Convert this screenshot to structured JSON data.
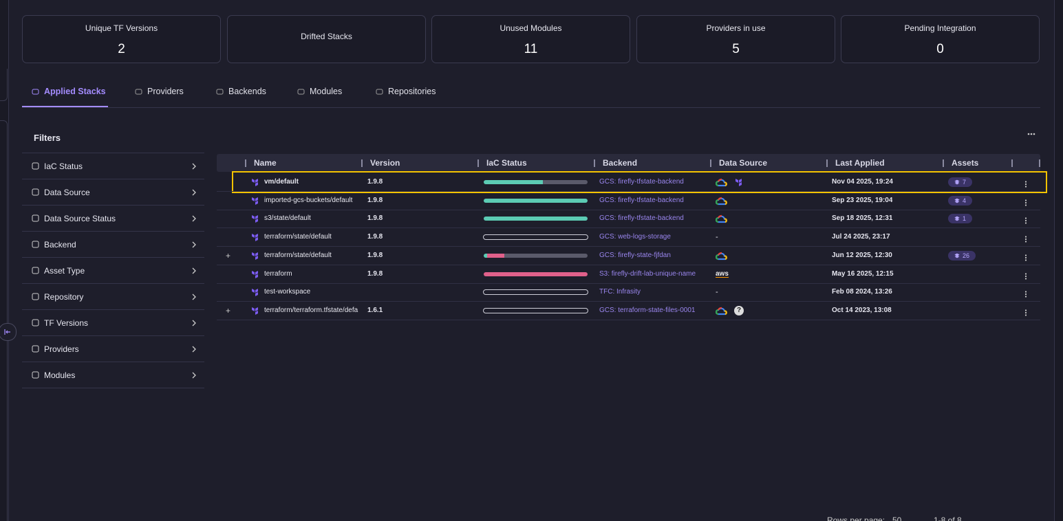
{
  "stats": [
    {
      "label": "Unique TF Versions",
      "value": "2"
    },
    {
      "label": "Drifted Stacks"
    },
    {
      "label": "Unused Modules",
      "value": "11"
    },
    {
      "label": "Providers in use",
      "value": "5"
    },
    {
      "label": "Pending Integration",
      "value": "0"
    }
  ],
  "tabs": {
    "items": [
      "Applied Stacks",
      "Providers",
      "Backends",
      "Modules",
      "Repositories"
    ],
    "active": 0
  },
  "filters": {
    "title": "Filters",
    "items": [
      "IaC Status",
      "Data Source",
      "Data Source Status",
      "Backend",
      "Asset Type",
      "Repository",
      "TF Versions",
      "Providers",
      "Modules"
    ]
  },
  "table": {
    "columns": [
      "Name",
      "Version",
      "IaC Status",
      "Backend",
      "Data Source",
      "Last Applied",
      "Assets"
    ],
    "highlighted_row": 0,
    "rows": [
      {
        "name": "vm/default",
        "version": "1.9.8",
        "iac": {
          "codified": 57,
          "drifted": 0,
          "unmanaged": 43
        },
        "backend": "GCS: firefly-tfstate-backend",
        "sources": [
          "gcp",
          "terraform"
        ],
        "last_applied": "Nov 04 2025, 19:24",
        "assets": "7"
      },
      {
        "name": "imported-gcs-buckets/default",
        "version": "1.9.8",
        "iac": {
          "codified": 100,
          "drifted": 0,
          "unmanaged": 0
        },
        "backend": "GCS: firefly-tfstate-backend",
        "sources": [
          "gcp"
        ],
        "last_applied": "Sep 23 2025, 19:04",
        "assets": "4"
      },
      {
        "name": "s3/state/default",
        "version": "1.9.8",
        "iac": {
          "codified": 100,
          "drifted": 0,
          "unmanaged": 0
        },
        "backend": "GCS: firefly-tfstate-backend",
        "sources": [
          "gcp"
        ],
        "last_applied": "Sep 18 2025, 12:31",
        "assets": "1"
      },
      {
        "name": "terraform/state/default",
        "version": "1.9.8",
        "iac": {
          "codified": 0,
          "drifted": 0,
          "unmanaged": 0
        },
        "backend": "GCS: web-logs-storage",
        "sources": [],
        "no_source": "-",
        "last_applied": "Jul 24 2025, 23:17"
      },
      {
        "expand": "+",
        "name": "terraform/state/default",
        "version": "1.9.8",
        "iac": {
          "codified": 3,
          "drifted": 17,
          "unmanaged": 80
        },
        "backend": "GCS: firefly-state-fjfdan",
        "sources": [
          "gcp"
        ],
        "last_applied": "Jun 12 2025, 12:30",
        "assets": "26"
      },
      {
        "name": "terraform",
        "version": "1.9.8",
        "iac": {
          "codified": 0,
          "drifted": 100,
          "unmanaged": 0
        },
        "backend": "S3: firefly-drift-lab-unique-name",
        "sources": [
          "aws"
        ],
        "last_applied": "May 16 2025, 12:15"
      },
      {
        "name": "test-workspace",
        "iac": {
          "codified": 0,
          "drifted": 0,
          "unmanaged": 0
        },
        "backend": "TFC: Infrasity",
        "sources": [],
        "no_source": "-",
        "last_applied": "Feb 08 2024, 13:26"
      },
      {
        "expand": "+",
        "name": "terraform/terraform.tfstate/defa",
        "version": "1.6.1",
        "iac": {
          "codified": 0,
          "drifted": 0,
          "unmanaged": 0
        },
        "backend": "GCS: terraform-state-files-0001",
        "sources": [
          "gcp",
          "?"
        ],
        "last_applied": "Oct 14 2023, 13:08"
      }
    ]
  },
  "pagination": {
    "rows_per_page_label": "Rows per page:",
    "rows_per_page": "50",
    "range": "1-8 of 8"
  }
}
